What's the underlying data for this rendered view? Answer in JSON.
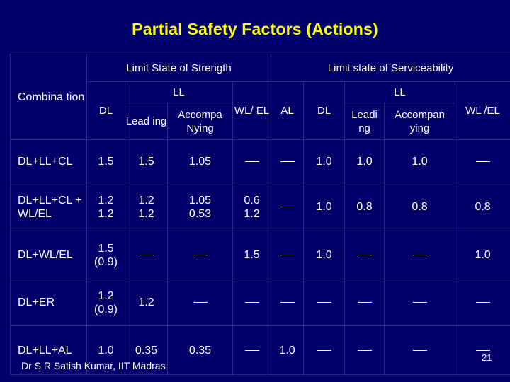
{
  "title": "Partial Safety Factors (Actions)",
  "header": {
    "strength": "Limit State of Strength",
    "serviceability": "Limit state of Serviceability",
    "combination": "Combina tion",
    "dl": "DL",
    "ll": "LL",
    "wl_el": "WL/ EL",
    "al": "AL",
    "leading_strength": "Lead ing",
    "accompanying_strength": "Accompa Nying",
    "leading_service": "Leadi ng",
    "accompanying_service": "Accompan ying",
    "wl_el_service": "WL /EL"
  },
  "rows": [
    {
      "label": "DL+LL+CL",
      "cells": [
        "1.5",
        "1.5",
        "1.05",
        "—",
        "—",
        "1.0",
        "1.0",
        "1.0",
        "—"
      ]
    },
    {
      "label": "DL+LL+CL + WL/EL",
      "cells": [
        "1.2\n1.2",
        "1.2\n1.2",
        "1.05\n0.53",
        "0.6\n1.2",
        "—",
        "1.0",
        "0.8",
        "0.8",
        "0.8"
      ]
    },
    {
      "label": "DL+WL/EL",
      "cells": [
        "1.5\n(0.9)",
        "—",
        "—",
        "1.5",
        "—",
        "1.0",
        "—",
        "—",
        "1.0"
      ]
    },
    {
      "label": "DL+ER",
      "cells": [
        "1.2\n(0.9)",
        "1.2",
        "—",
        "—",
        "—",
        "—",
        "—",
        "—",
        "—"
      ]
    },
    {
      "label": "DL+LL+AL",
      "cells": [
        "1.0",
        "0.35",
        "0.35",
        "—",
        "1.0",
        "—",
        "—",
        "—",
        "—"
      ]
    }
  ],
  "footer": "Dr S R Satish Kumar, IIT Madras",
  "page_number": "21"
}
